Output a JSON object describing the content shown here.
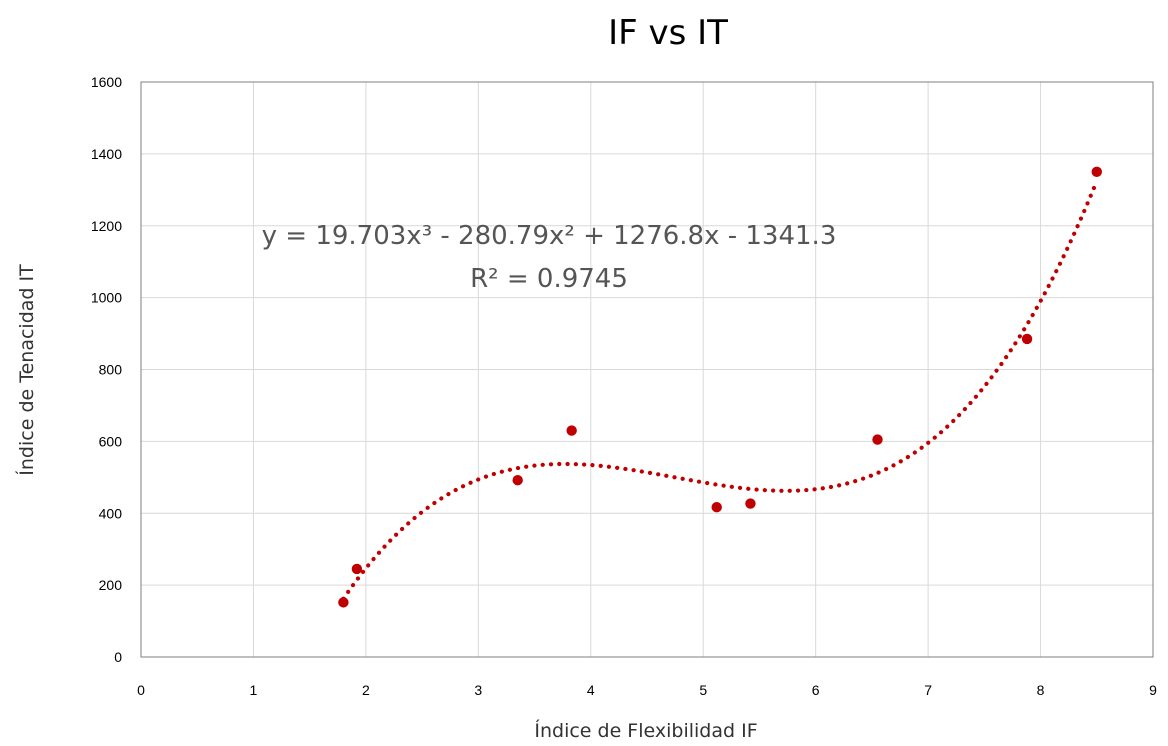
{
  "chart_data": {
    "type": "scatter",
    "title": "IF  vs IT",
    "xlabel": "Índice de Flexibilidad   IF",
    "ylabel": "Índice de Tenacidad  IT",
    "xlim": [
      0,
      9
    ],
    "ylim": [
      0,
      1600
    ],
    "x_ticks": [
      "0",
      "1",
      "2",
      "3",
      "4",
      "5",
      "6",
      "7",
      "8",
      "9"
    ],
    "y_ticks": [
      "0",
      "200",
      "400",
      "600",
      "800",
      "1000",
      "1200",
      "1400",
      "1600"
    ],
    "grid": true,
    "legend": "none",
    "series": [
      {
        "points": [
          {
            "x": 1.8,
            "y": 152
          },
          {
            "x": 1.92,
            "y": 245
          },
          {
            "x": 3.35,
            "y": 492
          },
          {
            "x": 3.83,
            "y": 630
          },
          {
            "x": 5.12,
            "y": 417
          },
          {
            "x": 5.42,
            "y": 427
          },
          {
            "x": 6.55,
            "y": 605
          },
          {
            "x": 7.88,
            "y": 885
          },
          {
            "x": 8.5,
            "y": 1350
          }
        ],
        "color": "#C00000"
      }
    ],
    "trendline": {
      "type": "polynomial",
      "order": 3,
      "coefficients": [
        19.703,
        -280.79,
        1276.8,
        -1341.3
      ],
      "x_range": [
        1.8,
        8.5
      ],
      "style": "dotted",
      "color": "#C00000",
      "equation_label": "y = 19.703x³ - 280.79x² + 1276.8x - 1341.3",
      "r2_label": "R² = 0.9745"
    }
  }
}
